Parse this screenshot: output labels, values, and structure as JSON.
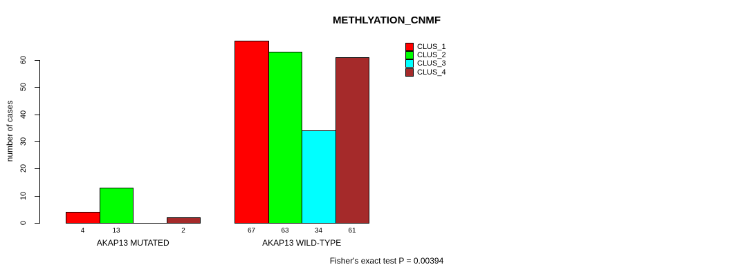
{
  "chart_data": {
    "type": "bar",
    "title": "METHLYATION_CNMF",
    "xlabel": "",
    "ylabel": "number of cases",
    "ylim": [
      0,
      60
    ],
    "yticks": [
      0,
      10,
      20,
      30,
      40,
      50,
      60
    ],
    "grid": false,
    "legend_position": "top-right-inside",
    "categories": [
      "AKAP13 MUTATED",
      "AKAP13 WILD-TYPE"
    ],
    "series": [
      {
        "name": "CLUS_1",
        "color": "#ff0000",
        "values": [
          4,
          67
        ]
      },
      {
        "name": "CLUS_2",
        "color": "#00ff00",
        "values": [
          13,
          63
        ]
      },
      {
        "name": "CLUS_3",
        "color": "#00ffff",
        "values": [
          0,
          34
        ]
      },
      {
        "name": "CLUS_4",
        "color": "#a52a2a",
        "values": [
          2,
          61
        ]
      }
    ],
    "value_labels": [
      [
        "4",
        "13",
        "",
        "2"
      ],
      [
        "67",
        "63",
        "34",
        "61"
      ]
    ],
    "footnote": "Fisher's exact test P = 0.00394",
    "colors": {
      "background": "#ffffff",
      "axis": "#000000",
      "text": "#000000"
    }
  }
}
